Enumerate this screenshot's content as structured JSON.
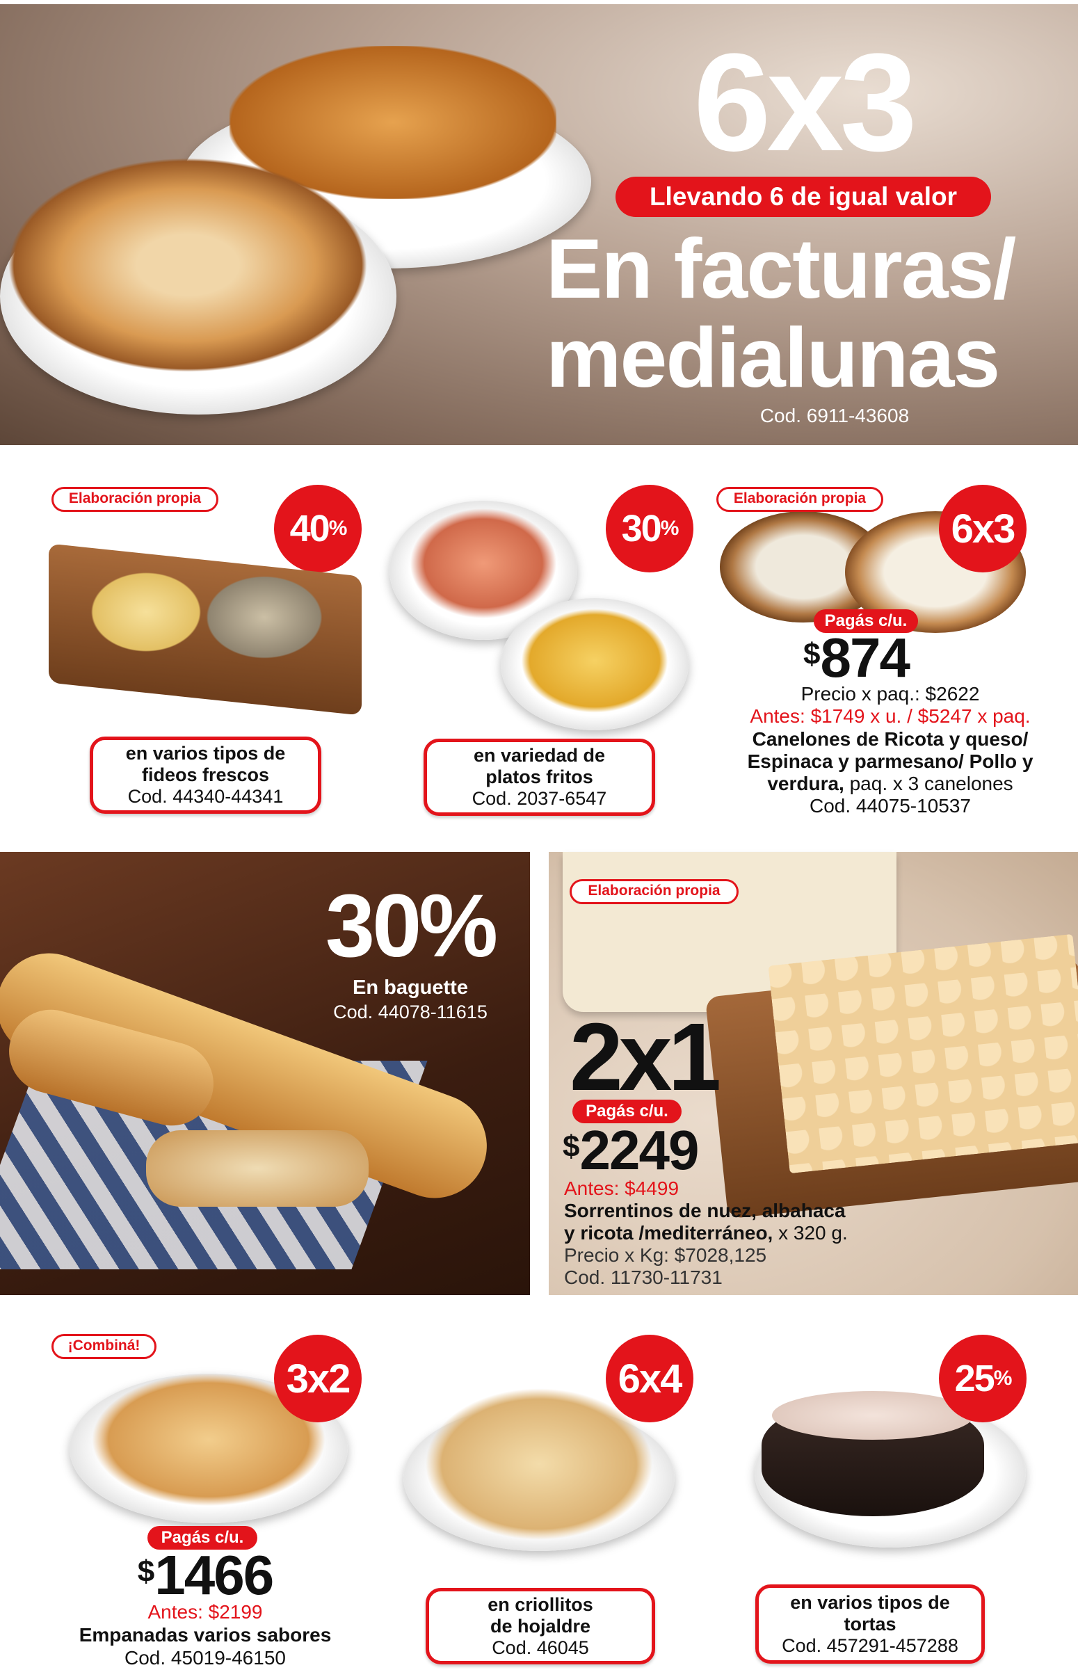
{
  "colors": {
    "accent": "#e3141b",
    "text": "#111111"
  },
  "hero": {
    "promo": "6x3",
    "condition": "Llevando 6 de igual valor",
    "title_line1": "En facturas/",
    "title_line2": "medialunas",
    "code": "Cod. 6911-43608"
  },
  "row1": [
    {
      "tag": "Elaboración propia",
      "discount": "40",
      "discount_unit": "%",
      "box_line1": "en varios tipos de",
      "box_line2": "fideos frescos",
      "code": "Cod. 44340-44341"
    },
    {
      "discount": "30",
      "discount_unit": "%",
      "box_line1": "en variedad de",
      "box_line2": "platos fritos",
      "code": "Cod. 2037-6547"
    },
    {
      "tag": "Elaboración propia",
      "promo": "6x3",
      "pay_label": "Pagás c/u.",
      "currency": "$",
      "price": "874",
      "pack_price": "Precio x paq.: $2622",
      "before": "Antes: $1749 x u. / $5247 x paq.",
      "name_line1": "Canelones de Ricota y queso/",
      "name_line2": "Espinaca y parmesano/ Pollo y",
      "name_line3_bold": "verdura,",
      "name_line3_rest": " paq. x 3 canelones",
      "code": "Cod. 44075-10537"
    }
  ],
  "row2": {
    "baguette": {
      "discount": "30%",
      "label": "En baguette",
      "code": "Cod. 44078-11615"
    },
    "sorrentinos": {
      "tag": "Elaboración propia",
      "promo": "2x1",
      "pay_label": "Pagás c/u.",
      "currency": "$",
      "price": "2249",
      "before": "Antes: $4499",
      "name_line1": "Sorrentinos de nuez, albahaca",
      "name_line2_bold": "y ricota /mediterráneo,",
      "name_line2_rest": " x 320 g.",
      "kg_price": "Precio x Kg: $7028,125",
      "code": "Cod. 11730-11731"
    }
  },
  "row3": [
    {
      "tag": "¡Combiná!",
      "promo": "3x2",
      "pay_label": "Pagás c/u.",
      "currency": "$",
      "price": "1466",
      "before": "Antes: $2199",
      "name": "Empanadas varios sabores",
      "code": "Cod. 45019-46150"
    },
    {
      "promo": "6x4",
      "box_line1": "en criollitos",
      "box_line2": "de hojaldre",
      "code": "Cod. 46045"
    },
    {
      "discount": "25",
      "discount_unit": "%",
      "box_line1": "en varios tipos de",
      "box_line2": "tortas",
      "code": "Cod. 457291-457288"
    }
  ]
}
